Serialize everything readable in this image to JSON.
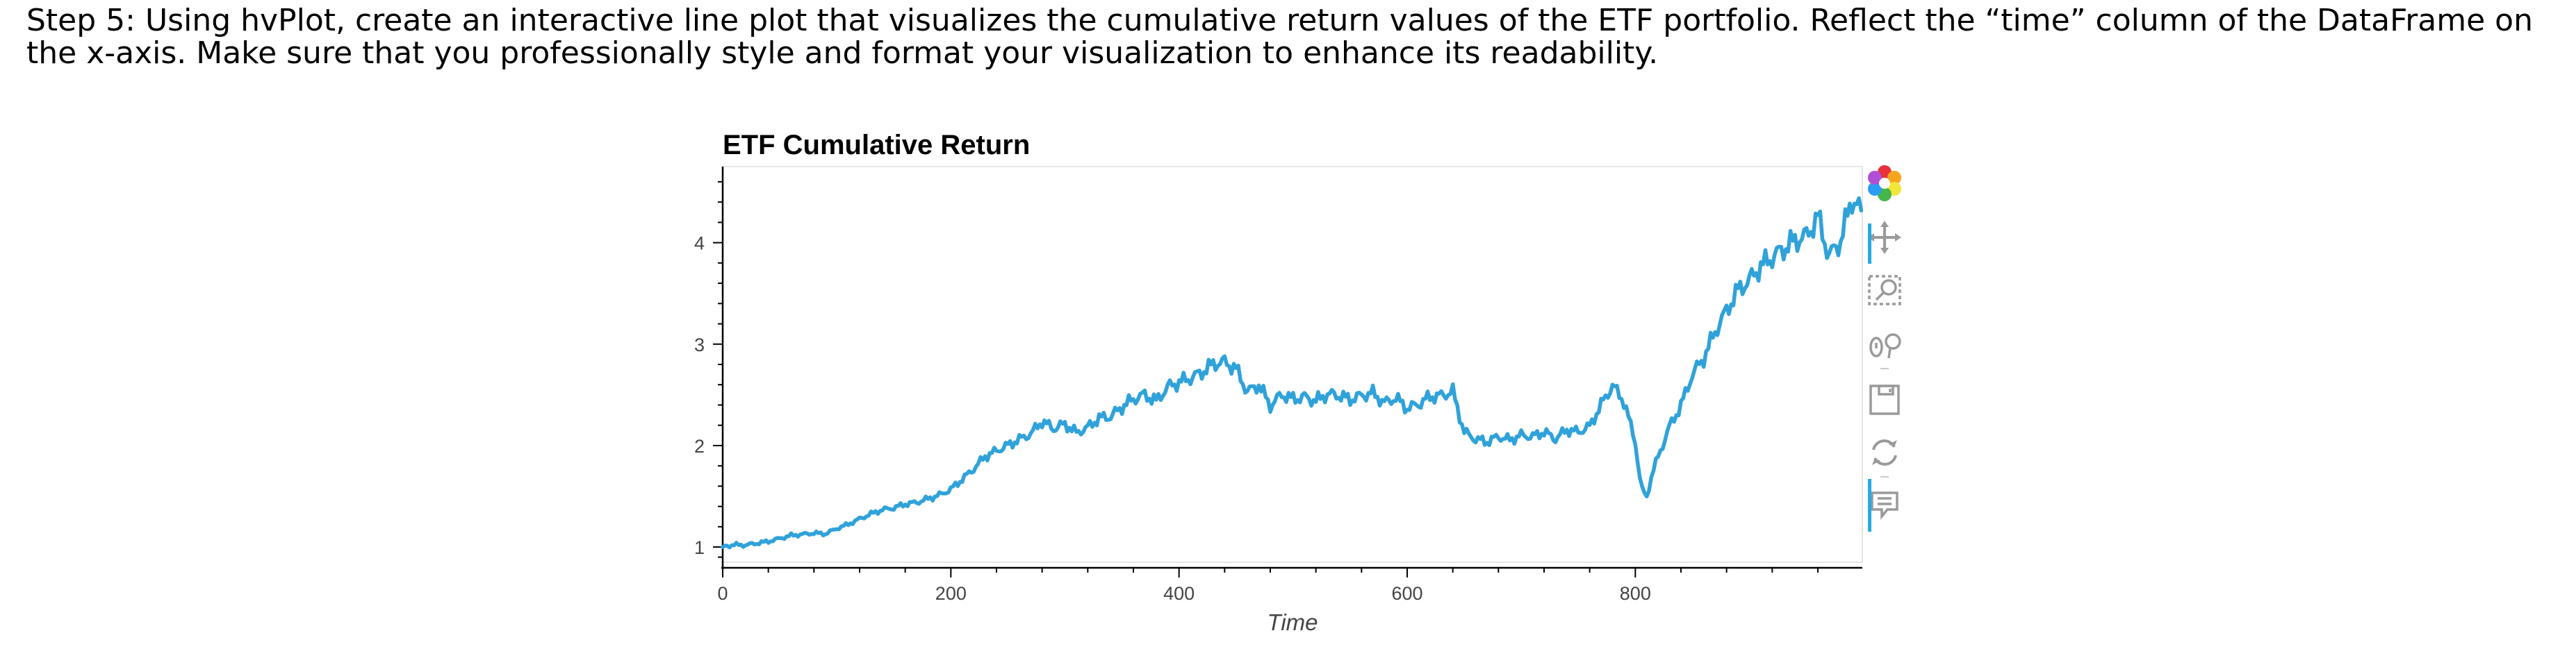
{
  "instruction": "Step 5: Using hvPlot, create an interactive line plot that visualizes the cumulative return values of the ETF portfolio. Reflect the “time” column of the DataFrame on the x-axis. Make sure that you professionally style and format your visualization to enhance its readability.",
  "colors": {
    "line": "#30a2da",
    "axis": "#000000",
    "tick_label": "#444444",
    "toolbar_icon": "#9a9a9a",
    "toolbar_active": "#26aae1"
  },
  "toolbar": {
    "tools": [
      "bokeh-logo-icon",
      "pan-icon",
      "box-zoom-icon",
      "wheel-zoom-icon",
      "save-icon",
      "reset-icon",
      "hover-icon"
    ]
  },
  "chart_data": {
    "type": "line",
    "title": "ETF Cumulative Return",
    "xlabel": "Time",
    "ylabel": "",
    "xlim": [
      0,
      999
    ],
    "ylim": [
      0.85,
      4.75
    ],
    "x_ticks": [
      0,
      200,
      400,
      600,
      800
    ],
    "y_ticks": [
      1,
      2,
      3,
      4
    ],
    "grid": false,
    "legend": "none",
    "series": [
      {
        "values_at": [
          0,
          10,
          20,
          30,
          40,
          50,
          60,
          70,
          80,
          90,
          100,
          110,
          120,
          130,
          140,
          150,
          160,
          170,
          180,
          190,
          200,
          210,
          220,
          230,
          240,
          250,
          260,
          270,
          280,
          290,
          300,
          310,
          320,
          330,
          340,
          350,
          360,
          370,
          380,
          390,
          400,
          410,
          420,
          430,
          440,
          450,
          460,
          470,
          480,
          490,
          500,
          510,
          520,
          530,
          540,
          550,
          560,
          570,
          580,
          590,
          600,
          610,
          620,
          630,
          640,
          650,
          660,
          670,
          680,
          690,
          700,
          710,
          720,
          730,
          740,
          750,
          760,
          770,
          780,
          790,
          800,
          805,
          810,
          815,
          820,
          825,
          830,
          840,
          850,
          860,
          870,
          880,
          890,
          900,
          910,
          920,
          930,
          940,
          950,
          960,
          970,
          980,
          990,
          999
        ],
        "values": [
          1.0,
          1.02,
          1.02,
          1.04,
          1.06,
          1.09,
          1.12,
          1.13,
          1.14,
          1.13,
          1.18,
          1.22,
          1.27,
          1.32,
          1.36,
          1.38,
          1.42,
          1.44,
          1.48,
          1.52,
          1.58,
          1.68,
          1.78,
          1.9,
          1.95,
          2.0,
          2.05,
          2.1,
          2.22,
          2.15,
          2.2,
          2.12,
          2.18,
          2.28,
          2.3,
          2.4,
          2.48,
          2.52,
          2.45,
          2.58,
          2.62,
          2.65,
          2.7,
          2.78,
          2.8,
          2.74,
          2.52,
          2.6,
          2.4,
          2.52,
          2.48,
          2.5,
          2.46,
          2.52,
          2.5,
          2.45,
          2.48,
          2.5,
          2.4,
          2.45,
          2.35,
          2.4,
          2.48,
          2.5,
          2.55,
          2.15,
          2.08,
          2.05,
          2.1,
          2.06,
          2.1,
          2.08,
          2.12,
          2.05,
          2.14,
          2.12,
          2.18,
          2.4,
          2.6,
          2.45,
          2.05,
          1.6,
          1.5,
          1.75,
          1.9,
          2.05,
          2.2,
          2.4,
          2.7,
          2.85,
          3.1,
          3.3,
          3.5,
          3.6,
          3.75,
          3.85,
          3.95,
          4.05,
          4.1,
          4.3,
          3.9,
          4.05,
          4.45,
          4.3
        ]
      }
    ]
  }
}
